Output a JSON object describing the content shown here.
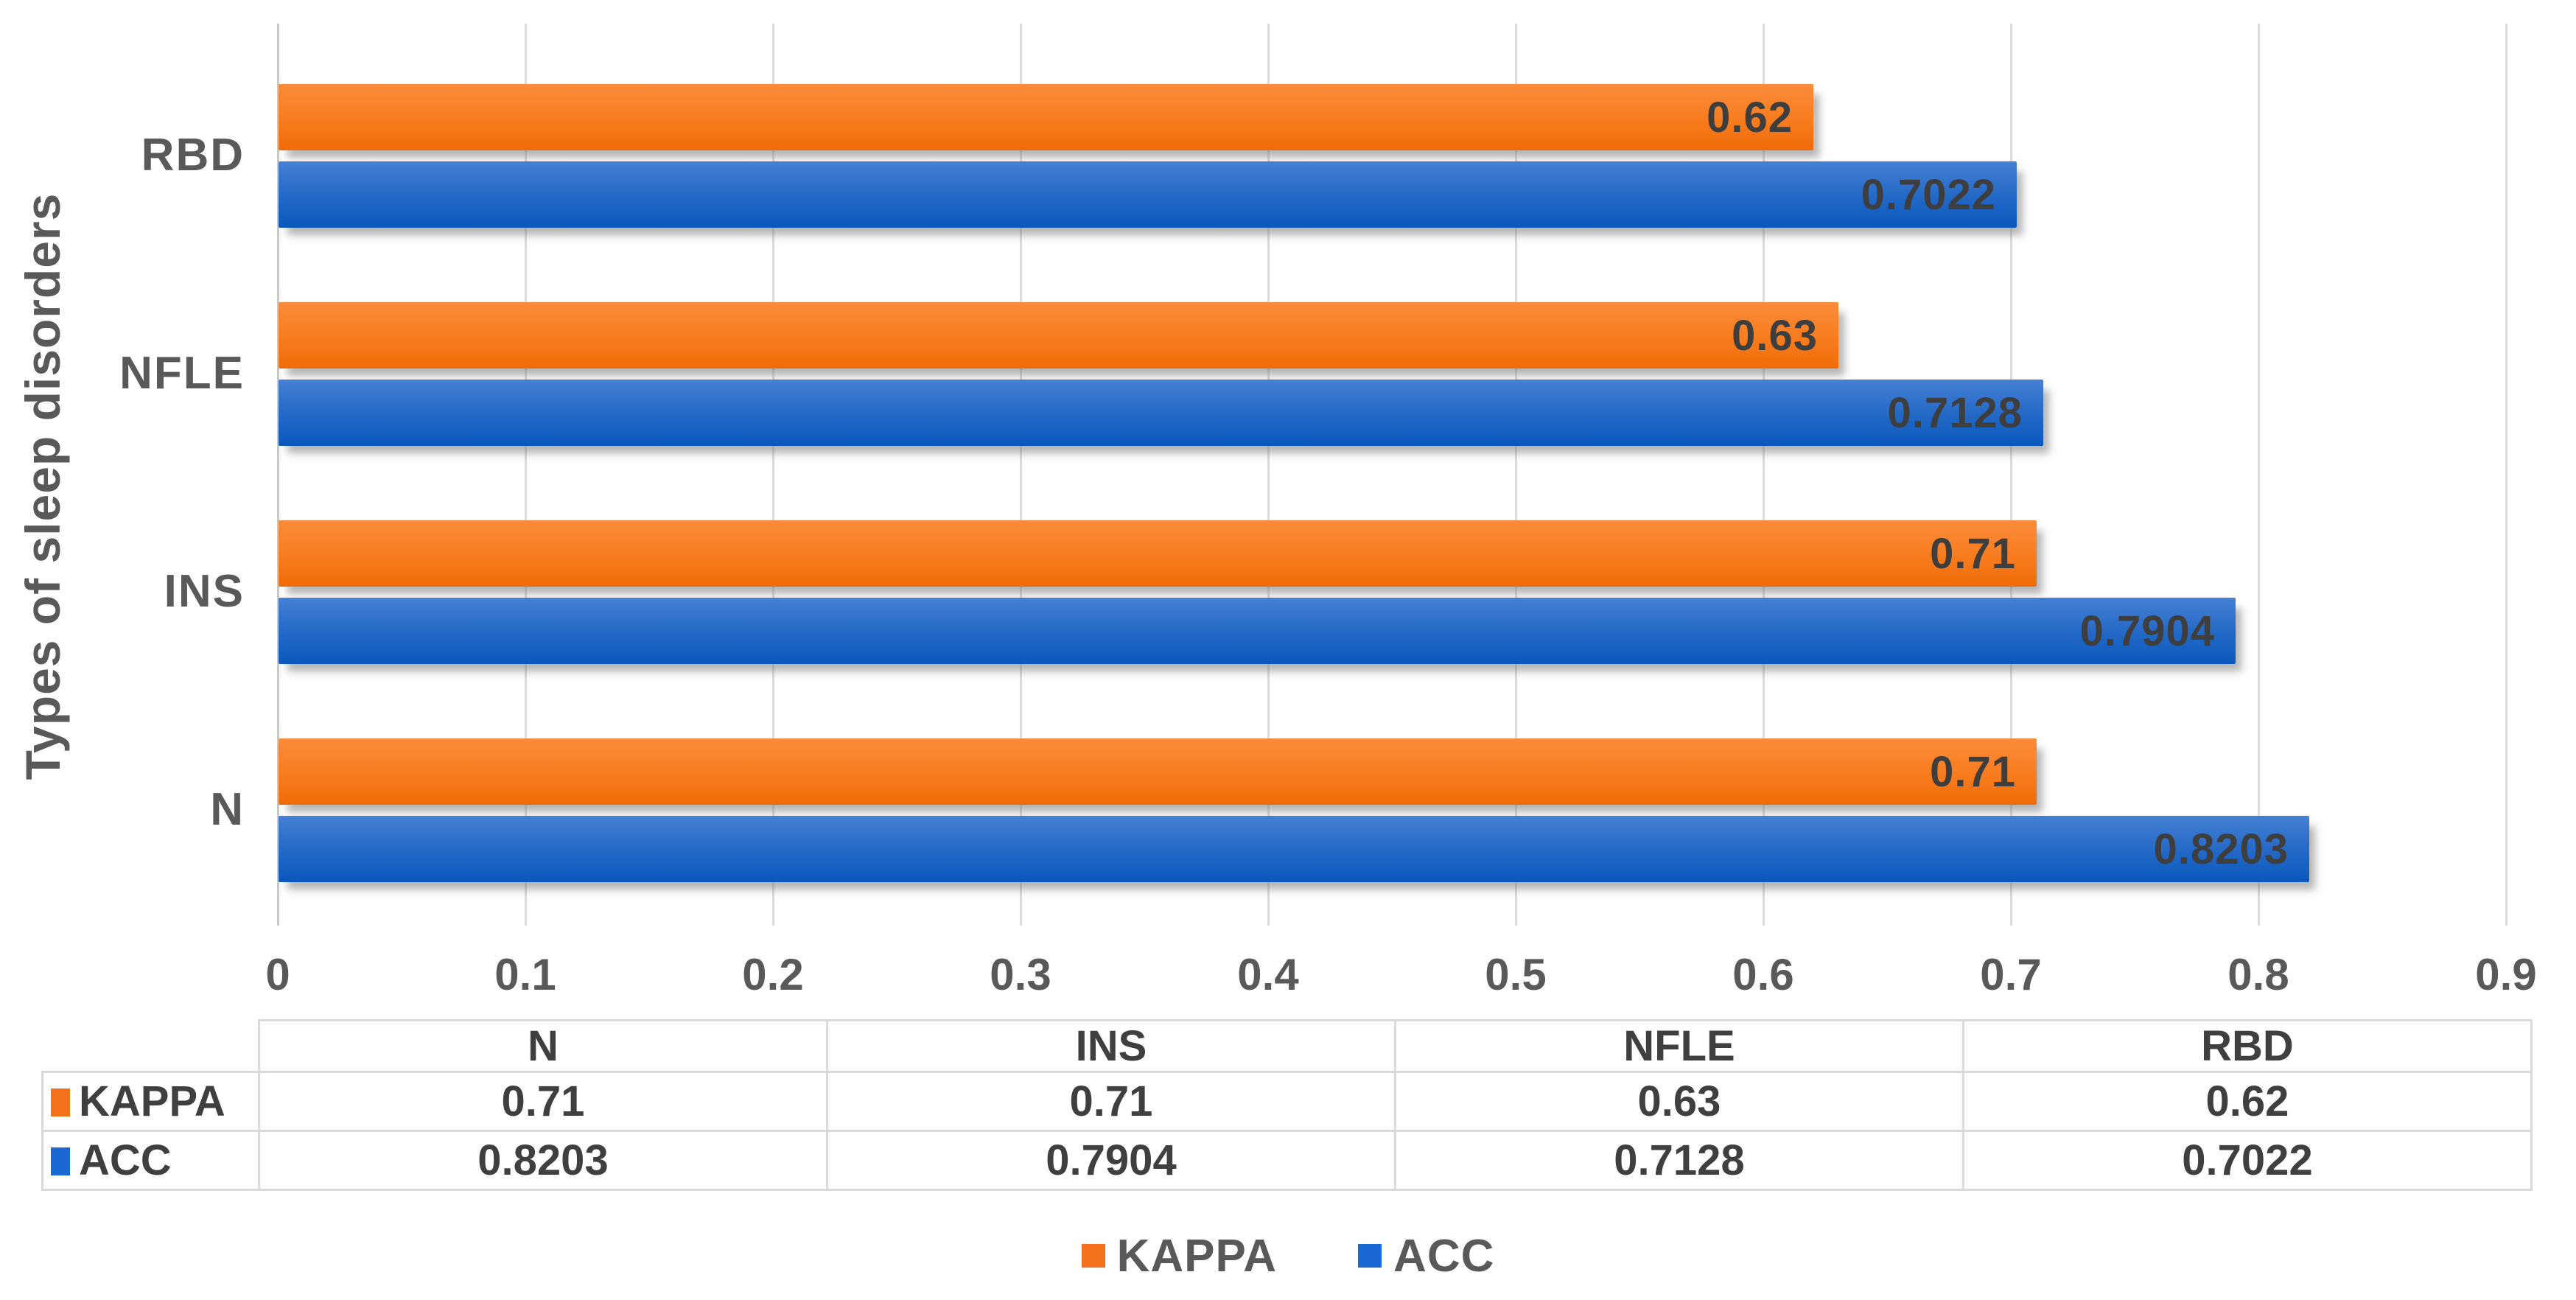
{
  "chart_data": {
    "type": "bar",
    "orientation": "horizontal",
    "title": "",
    "xlabel": "",
    "ylabel": "Types of sleep disorders",
    "categories": [
      "N",
      "INS",
      "NFLE",
      "RBD"
    ],
    "display_order_top_to_bottom": [
      "RBD",
      "NFLE",
      "INS",
      "N"
    ],
    "series": [
      {
        "name": "KAPPA",
        "color": "#F4711C",
        "values": [
          0.71,
          0.71,
          0.63,
          0.62
        ],
        "labels": [
          "0.71",
          "0.71",
          "0.63",
          "0.62"
        ]
      },
      {
        "name": "ACC",
        "color": "#1A69D2",
        "values": [
          0.8203,
          0.7904,
          0.7128,
          0.7022
        ],
        "labels": [
          "0.8203",
          "0.7904",
          "0.7128",
          "0.7022"
        ]
      }
    ],
    "xlim": [
      0,
      0.9
    ],
    "xticks": [
      "0",
      "0.1",
      "0.2",
      "0.3",
      "0.4",
      "0.5",
      "0.6",
      "0.7",
      "0.8",
      "0.9"
    ],
    "grid": true,
    "legend_position": "bottom",
    "data_table_shown": true
  },
  "table": {
    "header": [
      "",
      "N",
      "INS",
      "NFLE",
      "RBD"
    ],
    "rows": [
      {
        "label": "KAPPA",
        "swatch_color": "#F4711C",
        "cells": [
          "0.71",
          "0.71",
          "0.63",
          "0.62"
        ]
      },
      {
        "label": "ACC",
        "swatch_color": "#1A69D2",
        "cells": [
          "0.8203",
          "0.7904",
          "0.7128",
          "0.7022"
        ]
      }
    ]
  },
  "legend": {
    "items": [
      {
        "label": "KAPPA",
        "color": "#F4711C"
      },
      {
        "label": "ACC",
        "color": "#1A69D2"
      }
    ]
  },
  "colors": {
    "kappa_gradient_top": "#FB8C3B",
    "kappa_gradient_bottom": "#EF6C08",
    "acc_gradient_top": "#4680D4",
    "acc_gradient_bottom": "#0A58BD",
    "gridline": "#DBDBDB",
    "axis_line": "#C9C9C9",
    "axis_text": "#595959",
    "bar_label_text": "#3E3E3E",
    "table_text": "#3F3F3F",
    "table_border": "#DADADA",
    "background": "#FFFFFF"
  }
}
